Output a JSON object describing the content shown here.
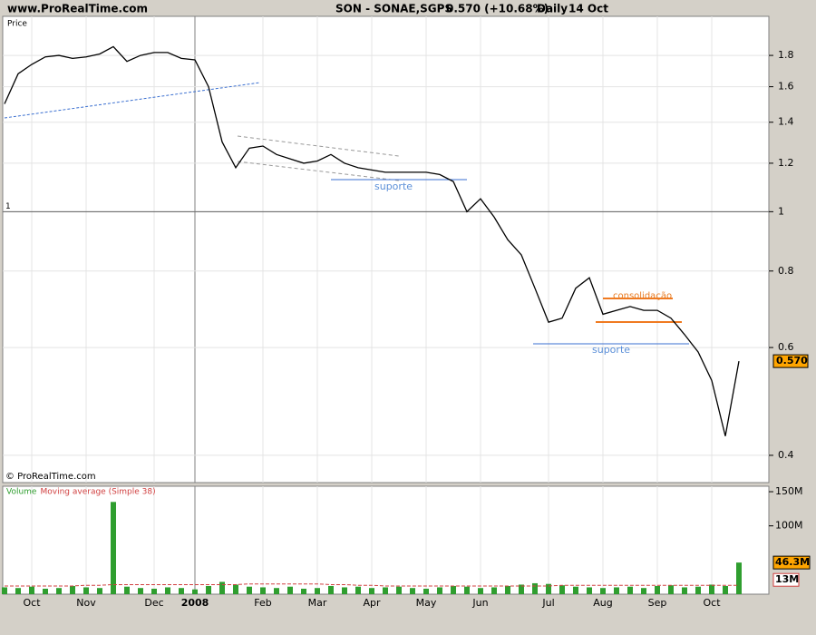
{
  "header": {
    "site": "www.ProRealTime.com",
    "instrument": "SON - SONAE,SGPS",
    "change": "0.570 (+10.68%)",
    "period": "Daily",
    "date": "14 Oct"
  },
  "chart_data": [
    {
      "type": "line",
      "panel_label": "Price",
      "copyright": "© ProRealTime.com",
      "log_scale": true,
      "grid": true,
      "color": "#000000",
      "values": [
        1.5,
        1.68,
        1.74,
        1.79,
        1.8,
        1.78,
        1.79,
        1.81,
        1.86,
        1.76,
        1.8,
        1.82,
        1.82,
        1.78,
        1.77,
        1.6,
        1.3,
        1.18,
        1.27,
        1.28,
        1.24,
        1.22,
        1.2,
        1.21,
        1.24,
        1.2,
        1.18,
        1.17,
        1.16,
        1.16,
        1.16,
        1.16,
        1.15,
        1.12,
        1.0,
        1.05,
        0.98,
        0.9,
        0.85,
        0.75,
        0.66,
        0.67,
        0.75,
        0.78,
        0.68,
        0.69,
        0.7,
        0.69,
        0.69,
        0.67,
        0.63,
        0.59,
        0.53,
        0.43,
        0.57
      ],
      "ylim": [
        0.361,
        2.085
      ],
      "yticks": [
        0.4,
        0.6,
        0.8,
        1,
        1.2,
        1.4,
        1.6,
        1.8
      ],
      "reference_line": 1,
      "last_label": {
        "value": 0.57,
        "label": "0.570"
      },
      "annotations": [
        "suporte",
        "suporte",
        "consolidação"
      ]
    },
    {
      "type": "bar",
      "categories": [
        null,
        null,
        "Oct",
        null,
        null,
        null,
        "Nov",
        null,
        null,
        null,
        null,
        "Dec",
        null,
        null,
        "2008",
        null,
        null,
        null,
        null,
        "Feb",
        null,
        null,
        null,
        "Mar",
        null,
        null,
        null,
        "Apr",
        null,
        null,
        null,
        "May",
        null,
        null,
        null,
        "Jun",
        null,
        null,
        null,
        null,
        "Jul",
        null,
        null,
        null,
        "Aug",
        null,
        null,
        null,
        "Sep",
        null,
        null,
        null,
        "Oct",
        null,
        null
      ],
      "series": [
        {
          "name": "Volume",
          "color": "#2f9e2f",
          "values": [
            10,
            9,
            11,
            8,
            9,
            12,
            10,
            9,
            135,
            11,
            9,
            8,
            10,
            9,
            7,
            12,
            18,
            14,
            11,
            10,
            9,
            11,
            8,
            9,
            12,
            10,
            11,
            9,
            10,
            11,
            9,
            8,
            10,
            12,
            11,
            9,
            10,
            12,
            14,
            16,
            15,
            13,
            11,
            10,
            9,
            10,
            11,
            9,
            12,
            13,
            10,
            11,
            14,
            12,
            46.3
          ]
        },
        {
          "name": "Moving average (Simple 38)",
          "color": "#d04040",
          "values": [
            12,
            12,
            12,
            12,
            12,
            12,
            13,
            13,
            14,
            14,
            14,
            14,
            14,
            14,
            14,
            14,
            14,
            14,
            15,
            15,
            15,
            15,
            15,
            15,
            14,
            14,
            13,
            13,
            12,
            12,
            12,
            12,
            12,
            12,
            12,
            12,
            12,
            12,
            12,
            12,
            12,
            13,
            13,
            13,
            13,
            13,
            13,
            13,
            13,
            13,
            13,
            13,
            13,
            13,
            13
          ]
        }
      ],
      "ylim": [
        0,
        158
      ],
      "yticks": [
        {
          "value": 100,
          "label": "100M"
        },
        {
          "value": 150,
          "label": "150M"
        }
      ],
      "last_label": {
        "value": 46.3,
        "label": "46.3M"
      },
      "ma_label": {
        "value": 13,
        "label": "13M"
      }
    }
  ]
}
